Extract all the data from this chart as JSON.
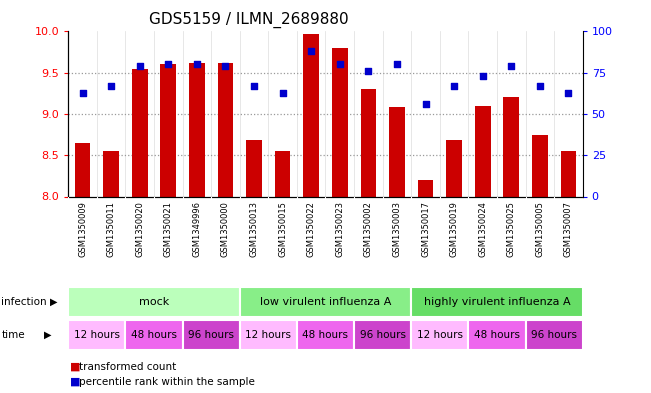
{
  "title": "GDS5159 / ILMN_2689880",
  "samples": [
    "GSM1350009",
    "GSM1350011",
    "GSM1350020",
    "GSM1350021",
    "GSM1349996",
    "GSM1350000",
    "GSM1350013",
    "GSM1350015",
    "GSM1350022",
    "GSM1350023",
    "GSM1350002",
    "GSM1350003",
    "GSM1350017",
    "GSM1350019",
    "GSM1350024",
    "GSM1350025",
    "GSM1350005",
    "GSM1350007"
  ],
  "bar_values": [
    8.65,
    8.55,
    9.55,
    9.6,
    9.62,
    9.62,
    8.68,
    8.55,
    9.97,
    9.8,
    9.3,
    9.08,
    8.2,
    8.68,
    9.1,
    9.2,
    8.75,
    8.55
  ],
  "dot_values": [
    63,
    67,
    79,
    80,
    80,
    79,
    67,
    63,
    88,
    80,
    76,
    80,
    56,
    67,
    73,
    79,
    67,
    63
  ],
  "ylim_left": [
    8.0,
    10.0
  ],
  "ylim_right": [
    0,
    100
  ],
  "yticks_left": [
    8.0,
    8.5,
    9.0,
    9.5,
    10.0
  ],
  "yticks_right": [
    0,
    25,
    50,
    75,
    100
  ],
  "bar_color": "#cc0000",
  "dot_color": "#0000cc",
  "bar_baseline": 8.0,
  "infection_groups": [
    {
      "label": "mock",
      "start": 0,
      "end": 6,
      "color": "#bbffbb"
    },
    {
      "label": "low virulent influenza A",
      "start": 6,
      "end": 12,
      "color": "#88ee88"
    },
    {
      "label": "highly virulent influenza A",
      "start": 12,
      "end": 18,
      "color": "#66dd66"
    }
  ],
  "time_colors": [
    "#ffbbff",
    "#ee66ee",
    "#cc44cc",
    "#ffbbff",
    "#ee66ee",
    "#cc44cc",
    "#ffbbff",
    "#ee66ee",
    "#cc44cc"
  ],
  "time_labels": [
    "12 hours",
    "48 hours",
    "96 hours",
    "12 hours",
    "48 hours",
    "96 hours",
    "12 hours",
    "48 hours",
    "96 hours"
  ],
  "bg_color": "#ffffff",
  "sample_row_bg": "#cccccc",
  "tick_label_fontsize": 7,
  "title_fontsize": 11
}
